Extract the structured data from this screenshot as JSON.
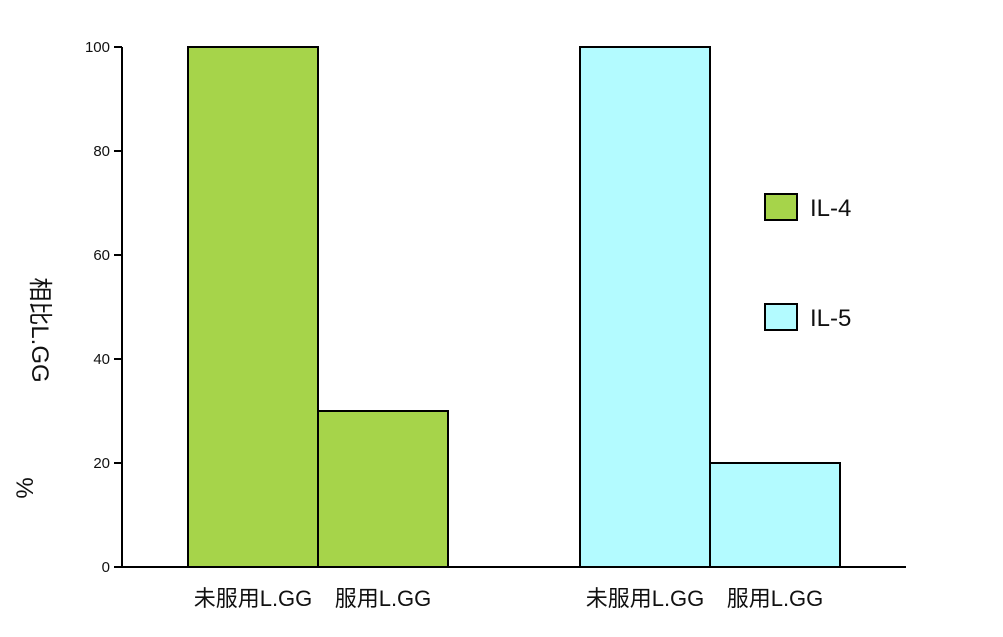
{
  "chart_data": {
    "type": "bar",
    "ylabel": "相比L.GG",
    "ylabel_unit": "%",
    "ylim": [
      0,
      100
    ],
    "yticks": [
      0,
      20,
      40,
      60,
      80,
      100
    ],
    "grid": false,
    "legend_position": "right",
    "groups": [
      {
        "series": "IL-4",
        "categories": [
          "未服用L.GG",
          "服用L.GG"
        ],
        "values": [
          100,
          30
        ]
      },
      {
        "series": "IL-5",
        "categories": [
          "未服用L.GG",
          "服用L.GG"
        ],
        "values": [
          100,
          20
        ]
      }
    ],
    "series": [
      {
        "name": "IL-4",
        "color": "#a6d44a"
      },
      {
        "name": "IL-5",
        "color": "#b3fbff"
      }
    ]
  }
}
